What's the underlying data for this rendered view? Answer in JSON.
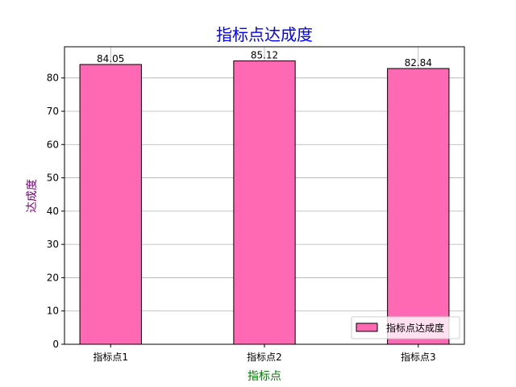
{
  "chart_data": {
    "type": "bar",
    "title": "指标点达成度",
    "xlabel": "指标点",
    "ylabel": "达成度",
    "categories": [
      "指标点1",
      "指标点2",
      "指标点3"
    ],
    "series": [
      {
        "name": "指标点达成度",
        "values": [
          84.05,
          85.12,
          82.84
        ]
      }
    ],
    "data_labels": [
      "84.05",
      "85.12",
      "82.84"
    ],
    "ylim": [
      0,
      89.376
    ],
    "yticks": [
      0,
      10,
      20,
      30,
      40,
      50,
      60,
      70,
      80
    ],
    "grid": true,
    "legend_position": "lower-right"
  },
  "colors": {
    "bar_fill": "#ff69b4",
    "bar_edge": "#000000",
    "title": "#0000ff",
    "xlabel": "#008000",
    "ylabel": "#800080",
    "grid": "#b0b0b0"
  }
}
